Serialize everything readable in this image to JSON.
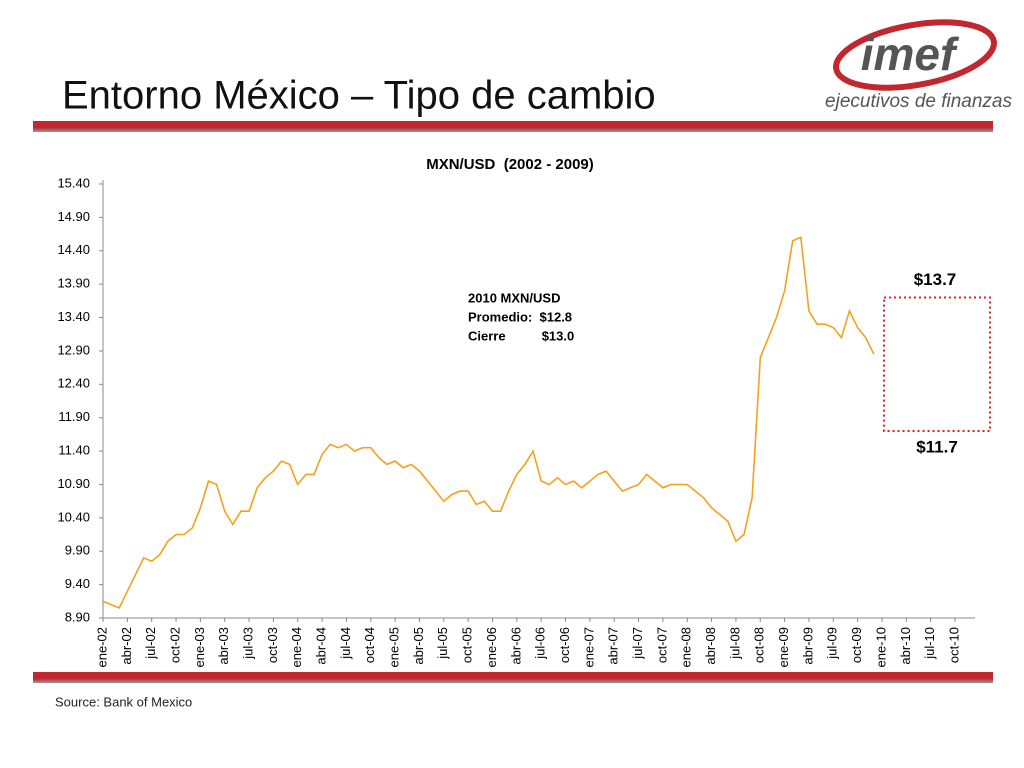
{
  "slide": {
    "title": "Entorno México – Tipo de cambio",
    "logo_text": "imef",
    "logo_tagline": "ejecutivos de finanzas",
    "source": "Source: Bank of Mexico"
  },
  "chart_data": {
    "type": "line",
    "title": "MXN/USD  (2002 - 2009)",
    "categories": [
      "ene-02",
      null,
      null,
      "abr-02",
      null,
      null,
      "jul-02",
      null,
      null,
      "oct-02",
      null,
      null,
      "ene-03",
      null,
      null,
      "abr-03",
      null,
      null,
      "jul-03",
      null,
      null,
      "oct-03",
      null,
      null,
      "ene-04",
      null,
      null,
      "abr-04",
      null,
      null,
      "jul-04",
      null,
      null,
      "oct-04",
      null,
      null,
      "ene-05",
      null,
      null,
      "abr-05",
      null,
      null,
      "jul-05",
      null,
      null,
      "oct-05",
      null,
      null,
      "ene-06",
      null,
      null,
      "abr-06",
      null,
      null,
      "jul-06",
      null,
      null,
      "oct-06",
      null,
      null,
      "ene-07",
      null,
      null,
      "abr-07",
      null,
      null,
      "jul-07",
      null,
      null,
      "oct-07",
      null,
      null,
      "ene-08",
      null,
      null,
      "abr-08",
      null,
      null,
      "jul-08",
      null,
      null,
      "oct-08",
      null,
      null,
      "ene-09",
      null,
      null,
      "abr-09",
      null,
      null,
      "jul-09",
      null,
      null,
      "oct-09",
      null,
      null,
      "ene-10",
      null,
      null,
      "abr-10",
      null,
      null,
      "jul-10",
      null,
      null,
      "oct-10"
    ],
    "series": [
      {
        "name": "MXN/USD",
        "color": "#f4a11d",
        "values": [
          9.15,
          9.1,
          9.05,
          9.3,
          9.55,
          9.8,
          9.75,
          9.85,
          10.05,
          10.15,
          10.15,
          10.25,
          10.55,
          10.95,
          10.9,
          10.5,
          10.3,
          10.5,
          10.5,
          10.85,
          11.0,
          11.1,
          11.25,
          11.2,
          10.9,
          11.05,
          11.05,
          11.35,
          11.5,
          11.45,
          11.5,
          11.4,
          11.45,
          11.45,
          11.3,
          11.2,
          11.25,
          11.15,
          11.2,
          11.1,
          10.95,
          10.8,
          10.65,
          10.75,
          10.8,
          10.8,
          10.6,
          10.65,
          10.5,
          10.5,
          10.8,
          11.05,
          11.2,
          11.4,
          10.95,
          10.9,
          11.0,
          10.9,
          10.95,
          10.85,
          10.95,
          11.05,
          11.1,
          10.95,
          10.8,
          10.85,
          10.9,
          11.05,
          10.95,
          10.85,
          10.9,
          10.9,
          10.9,
          10.8,
          10.7,
          10.55,
          10.45,
          10.35,
          10.05,
          10.15,
          10.7,
          12.8,
          13.1,
          13.4,
          13.8,
          14.55,
          14.6,
          13.5,
          13.3,
          13.3,
          13.25,
          13.1,
          13.5,
          13.25,
          13.1,
          12.85,
          null,
          null,
          null,
          null,
          null,
          null,
          null,
          null,
          null,
          null
        ]
      }
    ],
    "ylim": [
      8.9,
      15.4
    ],
    "yticks": [
      {
        "value": 8.9,
        "label": "8.90"
      },
      {
        "value": 9.4,
        "label": "9.40"
      },
      {
        "value": 9.9,
        "label": "9.90"
      },
      {
        "value": 10.4,
        "label": "10.40"
      },
      {
        "value": 10.9,
        "label": "10.90"
      },
      {
        "value": 11.4,
        "label": "11.40"
      },
      {
        "value": 11.9,
        "label": "11.90"
      },
      {
        "value": 12.4,
        "label": "12.40"
      },
      {
        "value": 12.9,
        "label": "12.90"
      },
      {
        "value": 13.4,
        "label": "13.40"
      },
      {
        "value": 13.9,
        "label": "13.90"
      },
      {
        "value": 14.4,
        "label": "14.40"
      },
      {
        "value": 14.9,
        "label": "14.90"
      },
      {
        "value": 15.4,
        "label": "15.40"
      }
    ],
    "grid": false,
    "annotation_lines": [
      "2010 MXN/USD",
      "Promedio:  $12.8",
      "Cierre          $13.0"
    ],
    "forecast_range": {
      "high": 13.7,
      "low": 11.7,
      "high_label": "$13.7",
      "low_label": "$11.7",
      "color": "#e02020"
    }
  }
}
